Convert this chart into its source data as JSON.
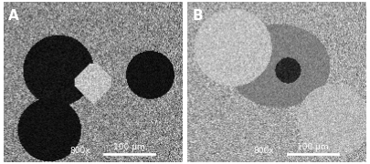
{
  "panel_A_label": "A",
  "panel_B_label": "B",
  "scale_text": "800x",
  "scale_bar_text": "100 μm",
  "border_color": "#ffffff",
  "border_width": 2,
  "label_fontsize": 11,
  "scale_fontsize": 6.5,
  "divider_color": "#ffffff",
  "fig_width": 4.05,
  "fig_height": 1.8,
  "dpi": 100,
  "panel_A_bg": "#888888",
  "panel_B_bg": "#aaaaaa",
  "label_color": "#ffffff",
  "scale_color": "#ffffff"
}
